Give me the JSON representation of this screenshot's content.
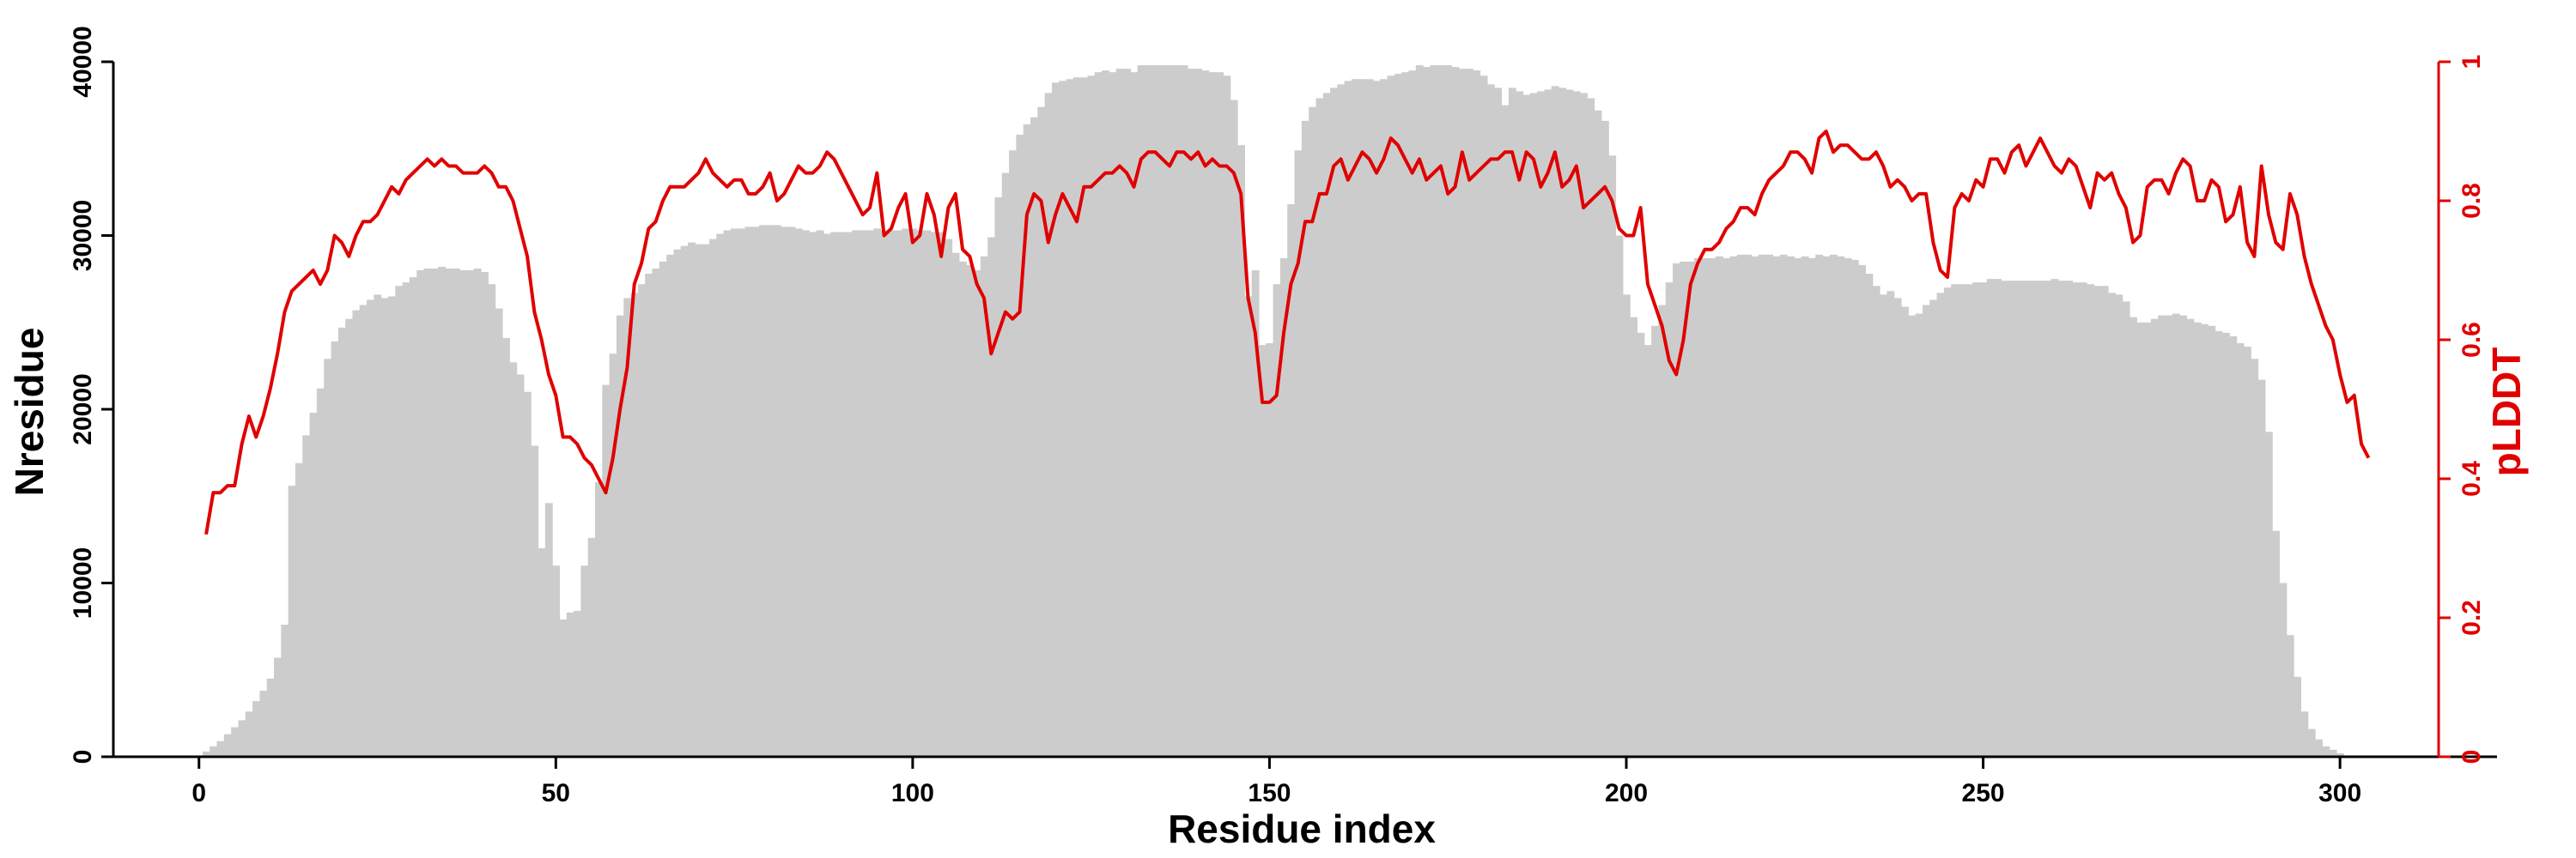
{
  "chart_data": {
    "type": "bar",
    "xlabel": "Residue index",
    "ylabel": "Nresidue",
    "y2label": "pLDDT",
    "x_ticks": [
      0,
      50,
      100,
      150,
      200,
      250,
      300
    ],
    "y_ticks": [
      0,
      10000,
      20000,
      30000,
      40000
    ],
    "y2_ticks": [
      0,
      0.2,
      0.4,
      0.6,
      0.8,
      1
    ],
    "xlim": [
      -12,
      322
    ],
    "ylim": [
      0,
      40000
    ],
    "y2lim": [
      0,
      1
    ],
    "grid": false,
    "colors": {
      "bars": "#cccccc",
      "line": "#e00000",
      "axis": "#000000",
      "y2axis": "#e00000"
    },
    "series": [
      {
        "kind": "bar",
        "x_start": 1,
        "values": [
          300,
          600,
          900,
          1300,
          1700,
          2100,
          2600,
          3200,
          3800,
          4500,
          5700,
          7600,
          15600,
          16900,
          18500,
          19800,
          21200,
          22900,
          23900,
          24700,
          25200,
          25700,
          26000,
          26300,
          26600,
          26400,
          26500,
          27100,
          27300,
          27600,
          28000,
          28100,
          28100,
          28200,
          28100,
          28100,
          28000,
          28000,
          28100,
          27900,
          27200,
          25800,
          24100,
          22700,
          22000,
          21000,
          17900,
          12000,
          14600,
          11000,
          7900,
          8300,
          8400,
          11000,
          12600,
          15800,
          21400,
          23200,
          25400,
          26400,
          26700,
          27200,
          27800,
          28100,
          28500,
          28900,
          29200,
          29400,
          29600,
          29500,
          29500,
          29800,
          30100,
          30300,
          30400,
          30400,
          30500,
          30500,
          30600,
          30600,
          30600,
          30500,
          30500,
          30400,
          30300,
          30200,
          30300,
          30100,
          30200,
          30200,
          30200,
          30300,
          30300,
          30300,
          30400,
          30300,
          30300,
          30300,
          30400,
          30400,
          30300,
          30300,
          30200,
          30200,
          29800,
          29000,
          28500,
          28300,
          28000,
          28800,
          29900,
          32200,
          33600,
          34900,
          35800,
          36400,
          36800,
          37400,
          38200,
          38800,
          38900,
          39000,
          39100,
          39100,
          39200,
          39400,
          39500,
          39400,
          39600,
          39600,
          39400,
          39800,
          39800,
          39800,
          39800,
          39800,
          39800,
          39800,
          39600,
          39600,
          39500,
          39400,
          39400,
          39200,
          37800,
          35200,
          26500,
          28000,
          23700,
          23800,
          27200,
          28700,
          31800,
          34900,
          36600,
          37400,
          37900,
          38200,
          38500,
          38700,
          38900,
          39000,
          39000,
          39000,
          38900,
          39000,
          39200,
          39300,
          39400,
          39500,
          39800,
          39700,
          39800,
          39800,
          39800,
          39700,
          39600,
          39600,
          39500,
          39200,
          38700,
          38500,
          37500,
          38500,
          38300,
          38100,
          38200,
          38300,
          38400,
          38600,
          38500,
          38400,
          38300,
          38200,
          37900,
          37200,
          36600,
          34600,
          30000,
          26600,
          25300,
          24400,
          23700,
          24800,
          26000,
          27300,
          28400,
          28500,
          28500,
          28700,
          28700,
          28700,
          28800,
          28700,
          28800,
          28900,
          28900,
          28800,
          28900,
          28900,
          28800,
          28900,
          28800,
          28700,
          28800,
          28700,
          28900,
          28800,
          28900,
          28800,
          28700,
          28600,
          28300,
          27800,
          27100,
          26600,
          26800,
          26400,
          25900,
          25400,
          25500,
          26000,
          26300,
          26700,
          27000,
          27200,
          27200,
          27200,
          27300,
          27300,
          27500,
          27500,
          27400,
          27400,
          27400,
          27400,
          27400,
          27400,
          27400,
          27500,
          27400,
          27400,
          27300,
          27300,
          27200,
          27100,
          27100,
          26700,
          26600,
          26200,
          25300,
          25000,
          25000,
          25200,
          25400,
          25400,
          25500,
          25400,
          25200,
          25000,
          24900,
          24800,
          24500,
          24400,
          24200,
          23800,
          23600,
          22900,
          21700,
          18700,
          13000,
          10000,
          7000,
          4600,
          2600,
          1600,
          1000,
          600,
          400,
          200
        ]
      },
      {
        "kind": "line",
        "x_start": 1,
        "values": [
          0.32,
          0.38,
          0.38,
          0.39,
          0.39,
          0.45,
          0.49,
          0.46,
          0.49,
          0.53,
          0.58,
          0.64,
          0.67,
          0.68,
          0.69,
          0.7,
          0.68,
          0.7,
          0.75,
          0.74,
          0.72,
          0.75,
          0.77,
          0.77,
          0.78,
          0.8,
          0.82,
          0.81,
          0.83,
          0.84,
          0.85,
          0.86,
          0.85,
          0.86,
          0.85,
          0.85,
          0.84,
          0.84,
          0.84,
          0.85,
          0.84,
          0.82,
          0.82,
          0.8,
          0.76,
          0.72,
          0.64,
          0.6,
          0.55,
          0.52,
          0.46,
          0.46,
          0.45,
          0.43,
          0.42,
          0.4,
          0.38,
          0.43,
          0.5,
          0.56,
          0.68,
          0.71,
          0.76,
          0.77,
          0.8,
          0.82,
          0.82,
          0.82,
          0.83,
          0.84,
          0.86,
          0.84,
          0.83,
          0.82,
          0.83,
          0.83,
          0.81,
          0.81,
          0.82,
          0.84,
          0.8,
          0.81,
          0.83,
          0.85,
          0.84,
          0.84,
          0.85,
          0.87,
          0.86,
          0.84,
          0.82,
          0.8,
          0.78,
          0.79,
          0.84,
          0.75,
          0.76,
          0.79,
          0.81,
          0.74,
          0.75,
          0.81,
          0.78,
          0.72,
          0.79,
          0.81,
          0.73,
          0.72,
          0.68,
          0.66,
          0.58,
          0.61,
          0.64,
          0.63,
          0.64,
          0.78,
          0.81,
          0.8,
          0.74,
          0.78,
          0.81,
          0.79,
          0.77,
          0.82,
          0.82,
          0.83,
          0.84,
          0.84,
          0.85,
          0.84,
          0.82,
          0.86,
          0.87,
          0.87,
          0.86,
          0.85,
          0.87,
          0.87,
          0.86,
          0.87,
          0.85,
          0.86,
          0.85,
          0.85,
          0.84,
          0.81,
          0.66,
          0.61,
          0.51,
          0.51,
          0.52,
          0.61,
          0.68,
          0.71,
          0.77,
          0.77,
          0.81,
          0.81,
          0.85,
          0.86,
          0.83,
          0.85,
          0.87,
          0.86,
          0.84,
          0.86,
          0.89,
          0.88,
          0.86,
          0.84,
          0.86,
          0.83,
          0.84,
          0.85,
          0.81,
          0.82,
          0.87,
          0.83,
          0.84,
          0.85,
          0.86,
          0.86,
          0.87,
          0.87,
          0.83,
          0.87,
          0.86,
          0.82,
          0.84,
          0.87,
          0.82,
          0.83,
          0.85,
          0.79,
          0.8,
          0.81,
          0.82,
          0.8,
          0.76,
          0.75,
          0.75,
          0.79,
          0.68,
          0.65,
          0.62,
          0.57,
          0.55,
          0.6,
          0.68,
          0.71,
          0.73,
          0.73,
          0.74,
          0.76,
          0.77,
          0.79,
          0.79,
          0.78,
          0.81,
          0.83,
          0.84,
          0.85,
          0.87,
          0.87,
          0.86,
          0.84,
          0.89,
          0.9,
          0.87,
          0.88,
          0.88,
          0.87,
          0.86,
          0.86,
          0.87,
          0.85,
          0.82,
          0.83,
          0.82,
          0.8,
          0.81,
          0.81,
          0.74,
          0.7,
          0.69,
          0.79,
          0.81,
          0.8,
          0.83,
          0.82,
          0.86,
          0.86,
          0.84,
          0.87,
          0.88,
          0.85,
          0.87,
          0.89,
          0.87,
          0.85,
          0.84,
          0.86,
          0.85,
          0.82,
          0.79,
          0.84,
          0.83,
          0.84,
          0.81,
          0.79,
          0.74,
          0.75,
          0.82,
          0.83,
          0.83,
          0.81,
          0.84,
          0.86,
          0.85,
          0.8,
          0.8,
          0.83,
          0.82,
          0.77,
          0.78,
          0.82,
          0.74,
          0.72,
          0.85,
          0.78,
          0.74,
          0.73,
          0.81,
          0.78,
          0.72,
          0.68,
          0.65,
          0.62,
          0.6,
          0.55,
          0.51,
          0.52,
          0.45,
          0.43
        ]
      }
    ]
  }
}
